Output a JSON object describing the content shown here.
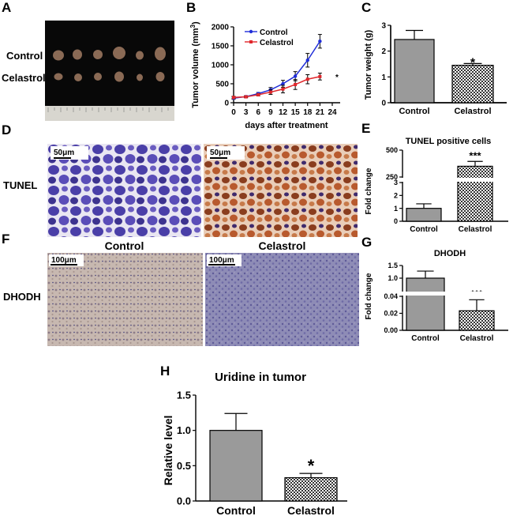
{
  "panel_labels": {
    "A": "A",
    "B": "B",
    "C": "C",
    "D": "D",
    "E": "E",
    "F": "F",
    "G": "G",
    "H": "H"
  },
  "panelA": {
    "rows": [
      "Control",
      "Celastrol"
    ]
  },
  "panelD": {
    "row_label": "TUNEL",
    "scale_left": "50μm",
    "scale_right": "50μm"
  },
  "panelF": {
    "row_label": "DHODH",
    "col_left": "Control",
    "col_right": "Celastrol",
    "scale_left": "100μm",
    "scale_right": "100μm"
  },
  "colors": {
    "control_line": "#1f2dd8",
    "celastrol_line": "#e0262b",
    "bar_control": "#9a9a9a"
  },
  "chart_data": [
    {
      "id": "B",
      "type": "line",
      "title": "",
      "xlabel": "days after treatment",
      "ylabel": "Tumor volume (mm³)",
      "ylabel_base": "Tumor volume (mm",
      "ylabel_sup": "3",
      "ylabel_end": ")",
      "x": [
        0,
        3,
        6,
        9,
        12,
        15,
        18,
        21
      ],
      "xticks": [
        "0",
        "3",
        "6",
        "9",
        "12",
        "15",
        "18",
        "21",
        "24"
      ],
      "yticks": [
        "0",
        "500",
        "1000",
        "1500",
        "2000"
      ],
      "xlim": [
        0,
        24
      ],
      "ylim": [
        0,
        2000
      ],
      "series": [
        {
          "name": "Control",
          "values": [
            120,
            160,
            240,
            340,
            500,
            700,
            1120,
            1620
          ],
          "errors": [
            30,
            25,
            30,
            60,
            90,
            120,
            180,
            180
          ]
        },
        {
          "name": "Celastrol",
          "values": [
            140,
            155,
            210,
            280,
            360,
            480,
            620,
            690
          ],
          "errors": [
            30,
            25,
            30,
            60,
            100,
            130,
            120,
            90
          ]
        }
      ],
      "annotation": "*",
      "legend": "top-left"
    },
    {
      "id": "C",
      "type": "bar",
      "ylabel": "Tumor weight (g)",
      "categories": [
        "Control",
        "Celastrol"
      ],
      "values": [
        2.45,
        1.45
      ],
      "errors": [
        0.35,
        0.07
      ],
      "yticks": [
        "0",
        "1",
        "2",
        "3"
      ],
      "ylim": [
        0,
        3
      ],
      "annotation": "*"
    },
    {
      "id": "E",
      "type": "bar",
      "title": "TUNEL positive cells",
      "ylabel": "Fold change",
      "categories": [
        "Control",
        "Celastrol"
      ],
      "values": [
        1.0,
        350
      ],
      "errors": [
        0.35,
        45
      ],
      "yticks": [
        "0",
        "1",
        "2",
        "3",
        "250",
        "500"
      ],
      "annotation": "***",
      "axis_break": [
        3,
        250
      ]
    },
    {
      "id": "G",
      "type": "bar",
      "title": "DHODH",
      "ylabel": "Fold change",
      "categories": [
        "Control",
        "Celastrol"
      ],
      "values": [
        1.0,
        0.023
      ],
      "errors": [
        0.28,
        0.013
      ],
      "yticks": [
        "0.00",
        "0.02",
        "0.04",
        "1.0",
        "1.5"
      ],
      "annotation": "***",
      "axis_break": [
        0.04,
        0.5
      ]
    },
    {
      "id": "H",
      "type": "bar",
      "title": "Uridine in tumor",
      "ylabel": "Relative level",
      "categories": [
        "Control",
        "Celastrol"
      ],
      "values": [
        1.0,
        0.33
      ],
      "errors": [
        0.24,
        0.06
      ],
      "yticks": [
        "0.0",
        "0.5",
        "1.0",
        "1.5"
      ],
      "ylim": [
        0,
        1.5
      ],
      "annotation": "*"
    }
  ]
}
